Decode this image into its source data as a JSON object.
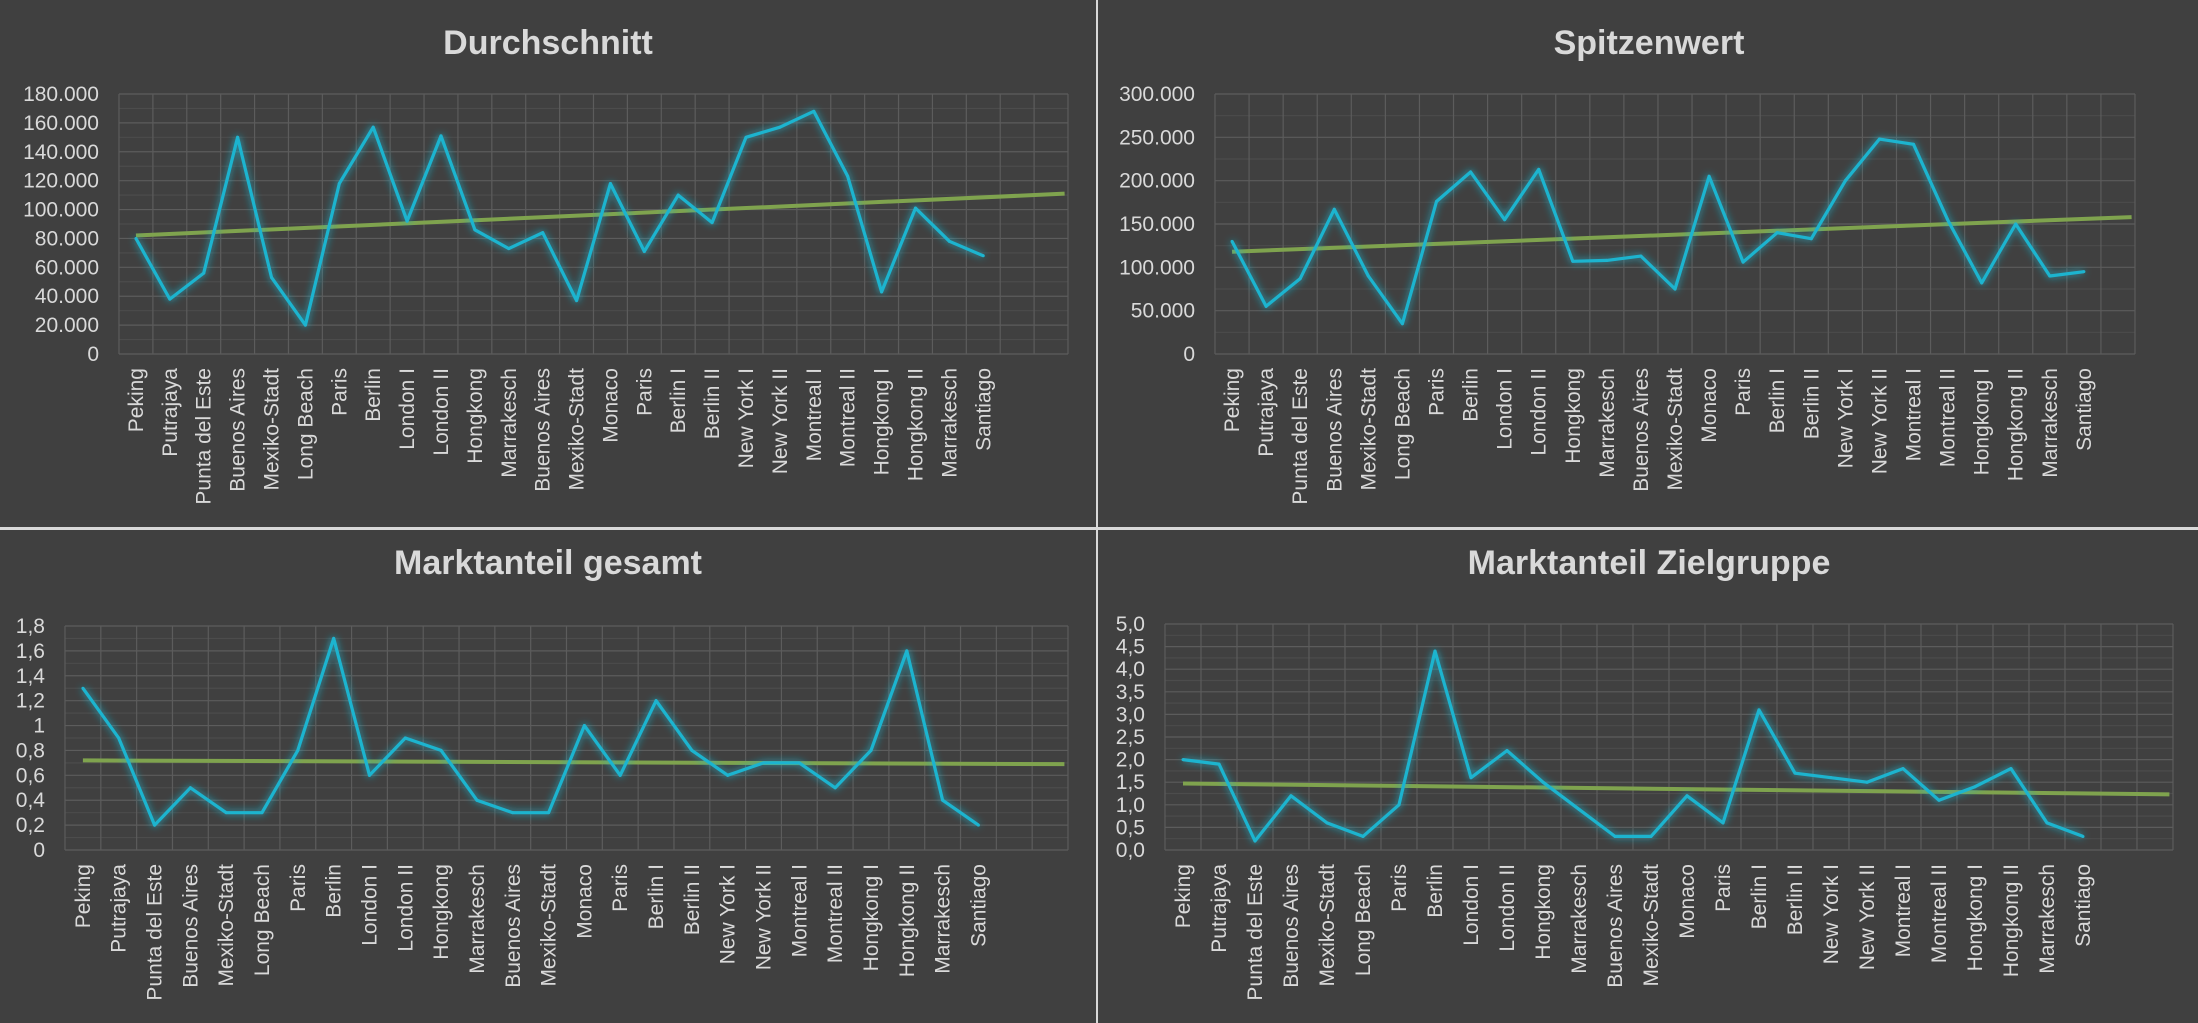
{
  "colors": {
    "background": "#404040",
    "series": "#1fb4cf",
    "trend": "#7fa34e",
    "grid": "#5c5c5c",
    "text": "#d9d9d9"
  },
  "chart_data": [
    {
      "type": "line",
      "title": "Durchschnitt",
      "categories": [
        "Peking",
        "Putrajaya",
        "Punta del Este",
        "Buenos Aires",
        "Mexiko-Stadt",
        "Long Beach",
        "Paris",
        "Berlin",
        "London I",
        "London II",
        "Hongkong",
        "Marrakesch",
        "Buenos Aires",
        "Mexiko-Stadt",
        "Monaco",
        "Paris",
        "Berlin I",
        "Berlin II",
        "New York I",
        "New York II",
        "Montreal I",
        "Montreal II",
        "Hongkong I",
        "Hongkong II",
        "Marrakesch",
        "Santiago"
      ],
      "values": [
        80000,
        38000,
        56000,
        150000,
        53000,
        20000,
        118000,
        157000,
        92000,
        151000,
        86000,
        73000,
        84000,
        37000,
        118000,
        71000,
        110000,
        91000,
        150000,
        157000,
        168000,
        123000,
        43000,
        101000,
        78000,
        68000
      ],
      "trend": [
        82000,
        111000
      ],
      "ylim": [
        0,
        180000
      ],
      "yticks": [
        0,
        20000,
        40000,
        60000,
        80000,
        100000,
        120000,
        140000,
        160000,
        180000
      ],
      "ytick_labels": [
        "0",
        "20.000",
        "40.000",
        "60.000",
        "80.000",
        "100.000",
        "120.000",
        "140.000",
        "160.000",
        "180.000"
      ],
      "slots": 28,
      "grid": true
    },
    {
      "type": "line",
      "title": "Spitzenwert",
      "categories": [
        "Peking",
        "Putrajaya",
        "Punta del Este",
        "Buenos Aires",
        "Mexiko-Stadt",
        "Long Beach",
        "Paris",
        "Berlin",
        "London I",
        "London II",
        "Hongkong",
        "Marrakesch",
        "Buenos Aires",
        "Mexiko-Stadt",
        "Monaco",
        "Paris",
        "Berlin I",
        "Berlin II",
        "New York I",
        "New York II",
        "Montreal I",
        "Montreal II",
        "Hongkong I",
        "Hongkong II",
        "Marrakesch",
        "Santiago"
      ],
      "values": [
        130000,
        55000,
        87000,
        167000,
        90000,
        35000,
        176000,
        210000,
        155000,
        213000,
        107000,
        108000,
        113000,
        75000,
        205000,
        106000,
        140000,
        133000,
        200000,
        248000,
        242000,
        155000,
        82000,
        150000,
        90000,
        95000
      ],
      "trend": [
        118000,
        158000
      ],
      "ylim": [
        0,
        300000
      ],
      "yticks": [
        0,
        50000,
        100000,
        150000,
        200000,
        250000,
        300000
      ],
      "ytick_labels": [
        "0",
        "50.000",
        "100.000",
        "150.000",
        "200.000",
        "250.000",
        "300.000"
      ],
      "slots": 27,
      "grid": true
    },
    {
      "type": "line",
      "title": "Marktanteil gesamt",
      "categories": [
        "Peking",
        "Putrajaya",
        "Punta del Este",
        "Buenos Aires",
        "Mexiko-Stadt",
        "Long Beach",
        "Paris",
        "Berlin",
        "London I",
        "London II",
        "Hongkong",
        "Marrakesch",
        "Buenos Aires",
        "Mexiko-Stadt",
        "Monaco",
        "Paris",
        "Berlin I",
        "Berlin II",
        "New York I",
        "New York II",
        "Montreal I",
        "Montreal II",
        "Hongkong I",
        "Hongkong II",
        "Marrakesch",
        "Santiago"
      ],
      "values": [
        1.3,
        0.9,
        0.2,
        0.5,
        0.3,
        0.3,
        0.8,
        1.7,
        0.6,
        0.9,
        0.8,
        0.4,
        0.3,
        0.3,
        1.0,
        0.6,
        1.2,
        0.8,
        0.6,
        0.7,
        0.7,
        0.5,
        0.8,
        1.6,
        0.4,
        0.2
      ],
      "trend": [
        0.72,
        0.69
      ],
      "ylim": [
        0,
        1.8
      ],
      "yticks": [
        0,
        0.2,
        0.4,
        0.6,
        0.8,
        1,
        1.2,
        1.4,
        1.6,
        1.8
      ],
      "ytick_labels": [
        "0",
        "0,2",
        "0,4",
        "0,6",
        "0,8",
        "1",
        "1,2",
        "1,4",
        "1,6",
        "1,8"
      ],
      "slots": 28,
      "grid": true
    },
    {
      "type": "line",
      "title": "Marktanteil Zielgruppe",
      "categories": [
        "Peking",
        "Putrajaya",
        "Punta del Este",
        "Buenos Aires",
        "Mexiko-Stadt",
        "Long Beach",
        "Paris",
        "Berlin",
        "London I",
        "London II",
        "Hongkong",
        "Marrakesch",
        "Buenos Aires",
        "Mexiko-Stadt",
        "Monaco",
        "Paris",
        "Berlin I",
        "Berlin II",
        "New York I",
        "New York II",
        "Montreal I",
        "Montreal II",
        "Hongkong I",
        "Hongkong II",
        "Marrakesch",
        "Santiago"
      ],
      "values": [
        2.0,
        1.9,
        0.2,
        1.2,
        0.6,
        0.3,
        1.0,
        4.4,
        1.6,
        2.2,
        1.5,
        0.9,
        0.3,
        0.3,
        1.2,
        0.6,
        3.1,
        1.7,
        1.6,
        1.5,
        1.8,
        1.1,
        1.4,
        1.8,
        0.6,
        0.3
      ],
      "trend": [
        1.47,
        1.23
      ],
      "ylim": [
        0,
        5
      ],
      "yticks": [
        0,
        0.5,
        1,
        1.5,
        2,
        2.5,
        3,
        3.5,
        4,
        4.5,
        5
      ],
      "ytick_labels": [
        "0,0",
        "0,5",
        "1,0",
        "1,5",
        "2,0",
        "2,5",
        "3,0",
        "3,5",
        "4,0",
        "4,5",
        "5,0"
      ],
      "slots": 28,
      "grid": true
    }
  ]
}
